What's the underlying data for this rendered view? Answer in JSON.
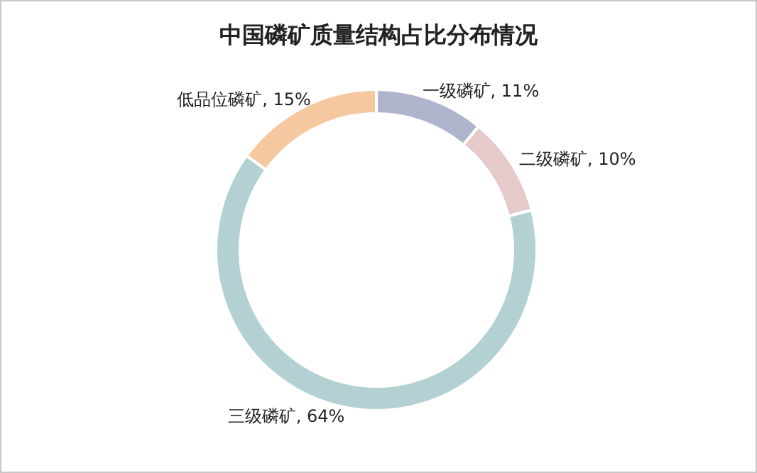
{
  "chart_data": {
    "type": "donut",
    "title": "中国磷矿质量结构占比分布情况",
    "categories": [
      "一级磷矿",
      "二级磷矿",
      "三级磷矿",
      "低品位磷矿"
    ],
    "values": [
      11,
      10,
      64,
      15
    ],
    "value_labels": [
      "11%",
      "10%",
      "64%",
      "15%"
    ],
    "colors": [
      "#aeb4cc",
      "#e6c9c9",
      "#b3d1d2",
      "#f6c8a0"
    ]
  }
}
